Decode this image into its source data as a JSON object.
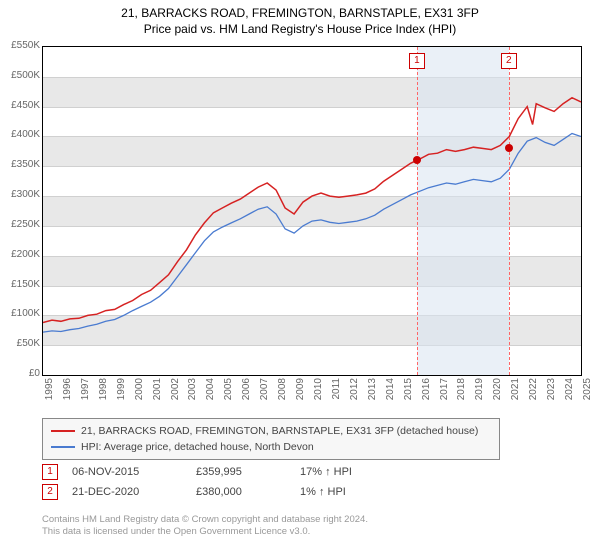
{
  "title_line1": "21, BARRACKS ROAD, FREMINGTON, BARNSTAPLE, EX31 3FP",
  "title_line2": "Price paid vs. HM Land Registry's House Price Index (HPI)",
  "chart": {
    "type": "line",
    "background_color": "#ffffff",
    "band_color": "#e8e8e8",
    "grid_color": "#d0d0d0",
    "ylim": [
      0,
      550000
    ],
    "ytick_step": 50000,
    "yticks": [
      "£0",
      "£50K",
      "£100K",
      "£150K",
      "£200K",
      "£250K",
      "£300K",
      "£350K",
      "£400K",
      "£450K",
      "£500K",
      "£550K"
    ],
    "xlim": [
      1995,
      2025
    ],
    "xticks": [
      "1995",
      "1996",
      "1997",
      "1998",
      "1999",
      "2000",
      "2001",
      "2002",
      "2003",
      "2004",
      "2005",
      "2006",
      "2007",
      "2008",
      "2009",
      "2010",
      "2011",
      "2012",
      "2013",
      "2014",
      "2015",
      "2016",
      "2017",
      "2018",
      "2019",
      "2020",
      "2021",
      "2022",
      "2023",
      "2024",
      "2025"
    ],
    "series": [
      {
        "name": "21, BARRACKS ROAD, FREMINGTON, BARNSTAPLE, EX31 3FP (detached house)",
        "color": "#d62222",
        "line_width": 1.5,
        "data": [
          [
            1995.0,
            88
          ],
          [
            1995.5,
            92
          ],
          [
            1996.0,
            90
          ],
          [
            1996.5,
            94
          ],
          [
            1997.0,
            95
          ],
          [
            1997.5,
            100
          ],
          [
            1998.0,
            102
          ],
          [
            1998.5,
            108
          ],
          [
            1999.0,
            110
          ],
          [
            1999.5,
            118
          ],
          [
            2000.0,
            125
          ],
          [
            2000.5,
            135
          ],
          [
            2001.0,
            142
          ],
          [
            2001.5,
            155
          ],
          [
            2002.0,
            168
          ],
          [
            2002.5,
            190
          ],
          [
            2003.0,
            210
          ],
          [
            2003.5,
            235
          ],
          [
            2004.0,
            255
          ],
          [
            2004.5,
            272
          ],
          [
            2005.0,
            280
          ],
          [
            2005.5,
            288
          ],
          [
            2006.0,
            295
          ],
          [
            2006.5,
            305
          ],
          [
            2007.0,
            315
          ],
          [
            2007.5,
            322
          ],
          [
            2008.0,
            310
          ],
          [
            2008.5,
            280
          ],
          [
            2009.0,
            270
          ],
          [
            2009.5,
            290
          ],
          [
            2010.0,
            300
          ],
          [
            2010.5,
            305
          ],
          [
            2011.0,
            300
          ],
          [
            2011.5,
            298
          ],
          [
            2012.0,
            300
          ],
          [
            2012.5,
            302
          ],
          [
            2013.0,
            305
          ],
          [
            2013.5,
            312
          ],
          [
            2014.0,
            325
          ],
          [
            2014.5,
            335
          ],
          [
            2015.0,
            345
          ],
          [
            2015.5,
            355
          ],
          [
            2016.0,
            362
          ],
          [
            2016.5,
            370
          ],
          [
            2017.0,
            372
          ],
          [
            2017.5,
            378
          ],
          [
            2018.0,
            375
          ],
          [
            2018.5,
            378
          ],
          [
            2019.0,
            382
          ],
          [
            2019.5,
            380
          ],
          [
            2020.0,
            378
          ],
          [
            2020.5,
            385
          ],
          [
            2021.0,
            400
          ],
          [
            2021.5,
            430
          ],
          [
            2022.0,
            450
          ],
          [
            2022.3,
            420
          ],
          [
            2022.5,
            455
          ],
          [
            2023.0,
            448
          ],
          [
            2023.5,
            442
          ],
          [
            2024.0,
            455
          ],
          [
            2024.5,
            465
          ],
          [
            2025.0,
            458
          ]
        ]
      },
      {
        "name": "HPI: Average price, detached house, North Devon",
        "color": "#4a7bd0",
        "line_width": 1.3,
        "data": [
          [
            1995.0,
            72
          ],
          [
            1995.5,
            74
          ],
          [
            1996.0,
            73
          ],
          [
            1996.5,
            76
          ],
          [
            1997.0,
            78
          ],
          [
            1997.5,
            82
          ],
          [
            1998.0,
            85
          ],
          [
            1998.5,
            90
          ],
          [
            1999.0,
            93
          ],
          [
            1999.5,
            100
          ],
          [
            2000.0,
            108
          ],
          [
            2000.5,
            115
          ],
          [
            2001.0,
            122
          ],
          [
            2001.5,
            132
          ],
          [
            2002.0,
            145
          ],
          [
            2002.5,
            165
          ],
          [
            2003.0,
            185
          ],
          [
            2003.5,
            205
          ],
          [
            2004.0,
            225
          ],
          [
            2004.5,
            240
          ],
          [
            2005.0,
            248
          ],
          [
            2005.5,
            255
          ],
          [
            2006.0,
            262
          ],
          [
            2006.5,
            270
          ],
          [
            2007.0,
            278
          ],
          [
            2007.5,
            282
          ],
          [
            2008.0,
            270
          ],
          [
            2008.5,
            245
          ],
          [
            2009.0,
            238
          ],
          [
            2009.5,
            250
          ],
          [
            2010.0,
            258
          ],
          [
            2010.5,
            260
          ],
          [
            2011.0,
            256
          ],
          [
            2011.5,
            254
          ],
          [
            2012.0,
            256
          ],
          [
            2012.5,
            258
          ],
          [
            2013.0,
            262
          ],
          [
            2013.5,
            268
          ],
          [
            2014.0,
            278
          ],
          [
            2014.5,
            286
          ],
          [
            2015.0,
            294
          ],
          [
            2015.5,
            302
          ],
          [
            2016.0,
            308
          ],
          [
            2016.5,
            314
          ],
          [
            2017.0,
            318
          ],
          [
            2017.5,
            322
          ],
          [
            2018.0,
            320
          ],
          [
            2018.5,
            324
          ],
          [
            2019.0,
            328
          ],
          [
            2019.5,
            326
          ],
          [
            2020.0,
            324
          ],
          [
            2020.5,
            330
          ],
          [
            2021.0,
            345
          ],
          [
            2021.5,
            372
          ],
          [
            2022.0,
            392
          ],
          [
            2022.5,
            398
          ],
          [
            2023.0,
            390
          ],
          [
            2023.5,
            385
          ],
          [
            2024.0,
            395
          ],
          [
            2024.5,
            405
          ],
          [
            2025.0,
            400
          ]
        ]
      }
    ],
    "shaded_region": {
      "xstart": 2015.85,
      "xend": 2020.97,
      "color": "#d8e3f0"
    },
    "event_lines": [
      {
        "x": 2015.85,
        "color": "#ff6666"
      },
      {
        "x": 2020.97,
        "color": "#ff6666"
      }
    ],
    "event_markers": [
      {
        "label": "1",
        "x": 2015.85,
        "y_value": 359.995,
        "box_color": "#cc0000",
        "dot_color": "#cc0000"
      },
      {
        "label": "2",
        "x": 2020.97,
        "y_value": 380.0,
        "box_color": "#cc0000",
        "dot_color": "#cc0000"
      }
    ]
  },
  "legend": {
    "border_color": "#888888",
    "bg_color": "#f7f7f7",
    "items": [
      {
        "label": "21, BARRACKS ROAD, FREMINGTON, BARNSTAPLE, EX31 3FP (detached house)",
        "color": "#d62222"
      },
      {
        "label": "HPI: Average price, detached house, North Devon",
        "color": "#4a7bd0"
      }
    ]
  },
  "events": [
    {
      "marker": "1",
      "date": "06-NOV-2015",
      "price": "£359,995",
      "delta": "17% ↑ HPI"
    },
    {
      "marker": "2",
      "date": "21-DEC-2020",
      "price": "£380,000",
      "delta": "1% ↑ HPI"
    }
  ],
  "footer_line1": "Contains HM Land Registry data © Crown copyright and database right 2024.",
  "footer_line2": "This data is licensed under the Open Government Licence v3.0."
}
